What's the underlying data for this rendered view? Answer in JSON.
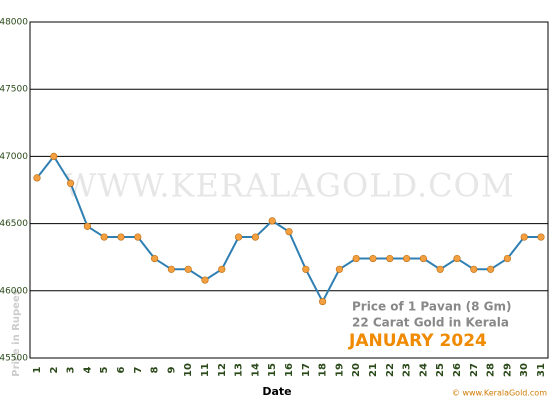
{
  "chart_data": {
    "type": "line",
    "watermark": "WWW.KERALAGOLD.COM",
    "annotations": [
      "Price of 1 Pavan (8 Gm)",
      "22 Carat Gold in Kerala",
      "JANUARY 2024"
    ],
    "x_label": "Date",
    "y_label": "Price in Rupees",
    "credit": "© www.KeralaGold.com",
    "categories": [
      "1",
      "2",
      "3",
      "4",
      "5",
      "6",
      "7",
      "8",
      "9",
      "10",
      "11",
      "12",
      "13",
      "14",
      "15",
      "16",
      "17",
      "18",
      "19",
      "20",
      "21",
      "22",
      "23",
      "24",
      "25",
      "26",
      "27",
      "28",
      "29",
      "30",
      "31"
    ],
    "series": [
      {
        "color": "#2f7fb3",
        "marker_color": "#f5a040",
        "values": [
          46840,
          47000,
          46800,
          46480,
          46400,
          46400,
          46400,
          46240,
          46160,
          46160,
          46080,
          46160,
          46400,
          46400,
          46520,
          46440,
          46160,
          45920,
          46160,
          46240,
          46240,
          46240,
          46240,
          46240,
          46160,
          46240,
          46160,
          46160,
          46240,
          46400,
          46400
        ]
      }
    ],
    "ylim": [
      45500,
      48000
    ],
    "yticks": [
      45500,
      46000,
      46500,
      47000,
      47500,
      48000
    ],
    "grid": true
  }
}
